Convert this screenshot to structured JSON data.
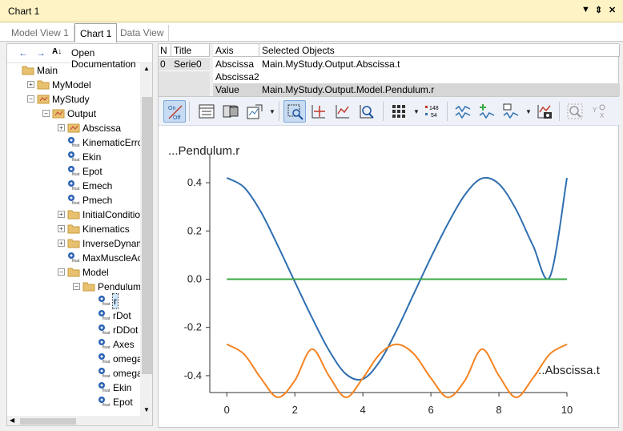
{
  "window": {
    "title": "Chart 1",
    "ctl_dropdown": "▼",
    "ctl_pin": "⇕",
    "ctl_close": "✕"
  },
  "tabs": [
    {
      "label": "Model View 1"
    },
    {
      "label": "Chart 1"
    },
    {
      "label": "Data View"
    }
  ],
  "left_toolbar": {
    "open_doc": "Open Documentation"
  },
  "tree": [
    {
      "label": "Main",
      "depth": 0,
      "icon": "folder",
      "exp": ""
    },
    {
      "label": "MyModel",
      "depth": 1,
      "icon": "folder",
      "exp": "+"
    },
    {
      "label": "MyStudy",
      "depth": 1,
      "icon": "study",
      "exp": "−"
    },
    {
      "label": "Output",
      "depth": 2,
      "icon": "study",
      "exp": "−"
    },
    {
      "label": "Abscissa",
      "depth": 3,
      "icon": "study",
      "exp": "+"
    },
    {
      "label": "KinematicError",
      "depth": 3,
      "icon": "float",
      "exp": ""
    },
    {
      "label": "Ekin",
      "depth": 3,
      "icon": "float",
      "exp": ""
    },
    {
      "label": "Epot",
      "depth": 3,
      "icon": "float",
      "exp": ""
    },
    {
      "label": "Emech",
      "depth": 3,
      "icon": "float",
      "exp": ""
    },
    {
      "label": "Pmech",
      "depth": 3,
      "icon": "float",
      "exp": ""
    },
    {
      "label": "InitialConditions",
      "depth": 3,
      "icon": "folder",
      "exp": "+"
    },
    {
      "label": "Kinematics",
      "depth": 3,
      "icon": "folder",
      "exp": "+"
    },
    {
      "label": "InverseDynamics",
      "depth": 3,
      "icon": "folder",
      "exp": "+"
    },
    {
      "label": "MaxMuscleActivity",
      "depth": 3,
      "icon": "float",
      "exp": ""
    },
    {
      "label": "Model",
      "depth": 3,
      "icon": "folder",
      "exp": "−"
    },
    {
      "label": "Pendulum",
      "depth": 4,
      "icon": "folder",
      "exp": "−"
    },
    {
      "label": "r",
      "depth": 5,
      "icon": "float",
      "exp": "",
      "selected": true
    },
    {
      "label": "rDot",
      "depth": 5,
      "icon": "float",
      "exp": ""
    },
    {
      "label": "rDDot",
      "depth": 5,
      "icon": "float",
      "exp": ""
    },
    {
      "label": "Axes",
      "depth": 5,
      "icon": "float",
      "exp": ""
    },
    {
      "label": "omega",
      "depth": 5,
      "icon": "float",
      "exp": ""
    },
    {
      "label": "omegaDot",
      "depth": 5,
      "icon": "float",
      "exp": ""
    },
    {
      "label": "Ekin",
      "depth": 5,
      "icon": "float",
      "exp": ""
    },
    {
      "label": "Epot",
      "depth": 5,
      "icon": "float",
      "exp": ""
    }
  ],
  "series_table": {
    "headers": [
      "N",
      "Title"
    ],
    "rows": [
      [
        "0",
        "Serie0"
      ]
    ]
  },
  "axis_table": {
    "headers": [
      "Axis",
      "Selected Objects"
    ],
    "rows": [
      [
        "Abscissa",
        "Main.MyStudy.Output.Abscissa.t"
      ],
      [
        "Abscissa2",
        ""
      ],
      [
        "Value",
        "Main.MyStudy.Output.Model.Pendulum.r"
      ]
    ]
  },
  "chart_toolbar": {
    "onoff_top": "On",
    "onoff_bottom": "Off",
    "num_top": "148",
    "num_bottom": "54"
  },
  "colors": {
    "blue": "#2f6fb0",
    "orange": "#f58220",
    "green": "#3aa845",
    "selection": "#cde6ff"
  },
  "chart_data": {
    "type": "line",
    "ylabel": "...Pendulum.r",
    "xlabel": "...Abscissa.t",
    "xlim": [
      -0.5,
      10
    ],
    "ylim": [
      -0.47,
      0.47
    ],
    "x_ticks": [
      "0",
      "2",
      "4",
      "6",
      "8",
      "10"
    ],
    "x_tick_values": [
      0,
      2,
      4,
      6,
      8,
      10
    ],
    "y_ticks": [
      "0.4",
      "0.2",
      "0.0",
      "-0.2",
      "-0.4"
    ],
    "y_tick_values": [
      0.4,
      0.2,
      0.0,
      -0.2,
      -0.4
    ],
    "series": [
      {
        "color": "#2f6fb0",
        "x": [
          0,
          0.5,
          1,
          1.5,
          2,
          2.5,
          3,
          3.5,
          4,
          4.5,
          5,
          5.5,
          6,
          6.5,
          7,
          7.5,
          8,
          8.5,
          9,
          9.5,
          10
        ],
        "values": [
          0.42,
          0.382,
          0.28,
          0.139,
          -0.011,
          -0.158,
          -0.294,
          -0.393,
          -0.414,
          -0.34,
          -0.21,
          -0.06,
          0.09,
          0.23,
          0.35,
          0.418,
          0.395,
          0.29,
          0.14,
          0.01,
          0.42
        ]
      },
      {
        "color": "#f58220",
        "x": [
          0,
          0.5,
          1,
          1.5,
          2,
          2.5,
          3,
          3.5,
          4,
          4.5,
          5,
          5.5,
          6,
          6.5,
          7,
          7.5,
          8,
          8.5,
          9,
          9.5,
          10
        ],
        "values": [
          -0.27,
          -0.31,
          -0.41,
          -0.49,
          -0.42,
          -0.29,
          -0.4,
          -0.49,
          -0.41,
          -0.31,
          -0.27,
          -0.31,
          -0.41,
          -0.49,
          -0.42,
          -0.29,
          -0.4,
          -0.49,
          -0.41,
          -0.31,
          -0.27
        ]
      },
      {
        "color": "#3aa845",
        "x": [
          0,
          10
        ],
        "values": [
          0,
          0
        ]
      }
    ]
  }
}
